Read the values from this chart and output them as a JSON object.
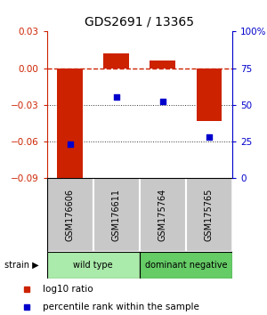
{
  "title": "GDS2691 / 13365",
  "samples": [
    "GSM176606",
    "GSM176611",
    "GSM175764",
    "GSM175765"
  ],
  "log10_ratio": [
    -0.091,
    0.012,
    0.006,
    -0.043
  ],
  "percentile_rank": [
    23,
    55,
    52,
    28
  ],
  "groups": [
    {
      "label": "wild type",
      "samples": [
        0,
        1
      ],
      "color": "#90ee90"
    },
    {
      "label": "dominant negative",
      "samples": [
        2,
        3
      ],
      "color": "#66cc66"
    }
  ],
  "group_label": "strain",
  "ylim_left": [
    -0.09,
    0.03
  ],
  "ylim_right": [
    0,
    100
  ],
  "yticks_left": [
    -0.09,
    -0.06,
    -0.03,
    0.0,
    0.03
  ],
  "yticks_right": [
    0,
    25,
    50,
    75,
    100
  ],
  "bar_color": "#cc2200",
  "dot_color": "#0000cc",
  "hline_color": "#cc2200",
  "dotted_line_color": "#333333",
  "bar_width": 0.55,
  "title_fontsize": 10,
  "tick_fontsize": 7.5,
  "legend_fontsize": 7.5,
  "sample_box_color": "#c8c8c8",
  "wild_type_color": "#aaeaaa",
  "dominant_neg_color": "#66cc66",
  "bg_color": "#ffffff"
}
